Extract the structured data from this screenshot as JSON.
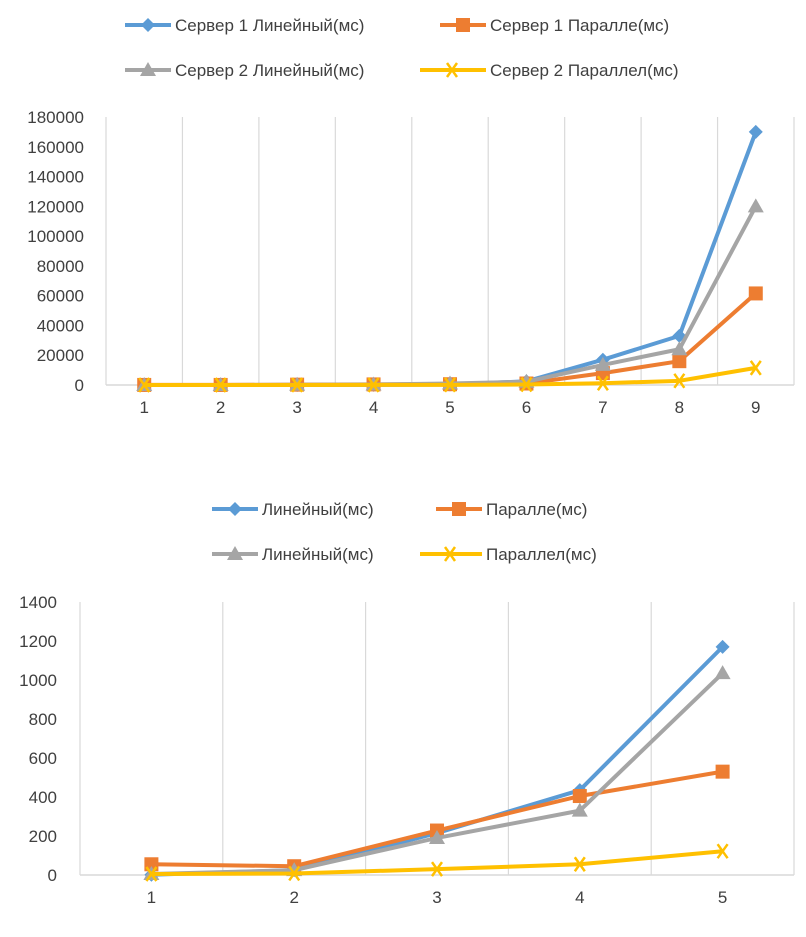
{
  "colors": {
    "blue": "#5b9bd5",
    "orange": "#ed7d31",
    "gray": "#a5a5a5",
    "yellow": "#ffc000"
  },
  "chart_data": [
    {
      "type": "line",
      "categories": [
        "1",
        "2",
        "3",
        "4",
        "5",
        "6",
        "7",
        "8",
        "9"
      ],
      "ylim": [
        0,
        180000
      ],
      "yticks": [
        "0",
        "20000",
        "40000",
        "60000",
        "80000",
        "100000",
        "120000",
        "140000",
        "160000",
        "180000"
      ],
      "grid": "vertical",
      "legend_position": "top",
      "series": [
        {
          "name": "Сервер 1 Линейный(мс)",
          "color": "#5b9bd5",
          "marker": "diamond",
          "values": [
            1,
            5,
            20,
            60,
            300,
            2500,
            17000,
            33000,
            170000
          ]
        },
        {
          "name": "Сервер 1 Паралле(мс)",
          "color": "#ed7d31",
          "marker": "square",
          "values": [
            50,
            45,
            230,
            400,
            530,
            1000,
            8000,
            16000,
            61500
          ]
        },
        {
          "name": "Сервер 2 Линейный(мс)",
          "color": "#a5a5a5",
          "marker": "triangle",
          "values": [
            5,
            20,
            190,
            330,
            1040,
            2200,
            13500,
            24000,
            120000
          ]
        },
        {
          "name": "Сервер 2 Параллел(мс)",
          "color": "#ffc000",
          "marker": "x",
          "values": [
            5,
            8,
            30,
            55,
            120,
            300,
            1200,
            2800,
            11500
          ]
        }
      ]
    },
    {
      "type": "line",
      "categories": [
        "1",
        "2",
        "3",
        "4",
        "5"
      ],
      "ylim": [
        0,
        1400
      ],
      "yticks": [
        "0",
        "200",
        "400",
        "600",
        "800",
        "1000",
        "1200",
        "1400"
      ],
      "grid": "vertical",
      "legend_position": "top",
      "series": [
        {
          "name": "Линейный(мс)",
          "color": "#5b9bd5",
          "marker": "diamond",
          "values": [
            1,
            25,
            215,
            435,
            1170
          ]
        },
        {
          "name": "Паралле(мс)",
          "color": "#ed7d31",
          "marker": "square",
          "values": [
            55,
            45,
            228,
            405,
            530
          ]
        },
        {
          "name": "Линейный(мс)",
          "color": "#a5a5a5",
          "marker": "triangle",
          "values": [
            5,
            25,
            190,
            330,
            1035
          ]
        },
        {
          "name": "Параллел(мс)",
          "color": "#ffc000",
          "marker": "x",
          "values": [
            5,
            8,
            30,
            55,
            122
          ]
        }
      ]
    }
  ]
}
